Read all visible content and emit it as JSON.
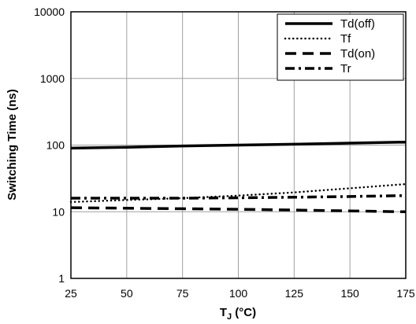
{
  "chart_data": {
    "type": "line",
    "x": [
      25,
      50,
      75,
      100,
      125,
      150,
      175
    ],
    "xlabel": "T",
    "xlabel_sub": "J",
    "xlabel_unit": " (°C)",
    "ylabel": "Switching Time (ns)",
    "xlim": [
      25,
      175
    ],
    "ylim": [
      1,
      10000
    ],
    "y_scale": "log",
    "x_ticks": [
      "25",
      "50",
      "75",
      "100",
      "125",
      "150",
      "175"
    ],
    "y_ticks": [
      "1",
      "10",
      "100",
      "1000",
      "10000"
    ],
    "grid": true,
    "legend_position": "top-right",
    "series": [
      {
        "name": "Td(off)",
        "style": "solid",
        "values": [
          90,
          93,
          97,
          100,
          103,
          107,
          111
        ]
      },
      {
        "name": "Tf",
        "style": "dotted",
        "values": [
          14,
          15,
          16,
          17.5,
          19.5,
          22.5,
          26
        ]
      },
      {
        "name": "Td(on)",
        "style": "dashed",
        "values": [
          11.5,
          11.3,
          11.1,
          10.9,
          10.6,
          10.3,
          10
        ]
      },
      {
        "name": "Tr",
        "style": "dashdot",
        "values": [
          16,
          16,
          16,
          16.2,
          16.5,
          16.9,
          17.5
        ]
      }
    ]
  }
}
